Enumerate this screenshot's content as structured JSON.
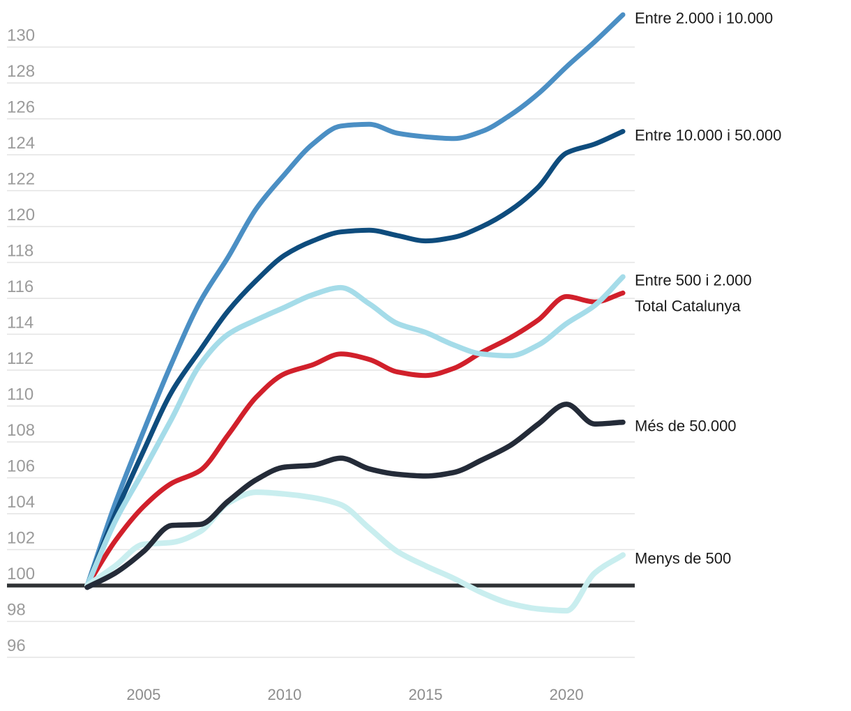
{
  "page": {
    "background": "#ffffff"
  },
  "chart_data": {
    "type": "line",
    "title": "",
    "xlabel": "",
    "ylabel": "",
    "grid": "horizontal",
    "legend_position": "line-end-right",
    "x": [
      2003,
      2004,
      2005,
      2006,
      2007,
      2008,
      2009,
      2010,
      2011,
      2012,
      2013,
      2014,
      2015,
      2016,
      2017,
      2018,
      2019,
      2020,
      2021,
      2022
    ],
    "x_axis": {
      "ticks": [
        2005,
        2010,
        2015,
        2020
      ]
    },
    "y_axis": {
      "ticks": [
        130,
        128,
        126,
        124,
        122,
        120,
        118,
        116,
        114,
        112,
        110,
        108,
        106,
        104,
        102,
        100,
        98,
        96
      ],
      "baseline": 100
    },
    "ylim": [
      96,
      132
    ],
    "colors": {
      "grid": "#e4e4e4",
      "baseline": "#2e3134",
      "y_tick_text": "#9b9b9b",
      "x_tick_text": "#8d8d8d",
      "label_text": "#1a1a1a"
    },
    "series": [
      {
        "name": "Entre 2.000 i 10.000",
        "slug": "entre-2000-i-10000",
        "color": "#4b8fc4",
        "line_width": 7,
        "values": [
          100,
          104.6,
          108.6,
          112.4,
          115.8,
          118.3,
          121.0,
          122.9,
          124.6,
          125.6,
          125.7,
          125.2,
          125.0,
          124.9,
          125.3,
          126.2,
          127.4,
          128.9,
          130.3,
          131.8
        ]
      },
      {
        "name": "Entre 10.000 i 50.000",
        "slug": "entre-10000-i-50000",
        "color": "#0e4c7d",
        "line_width": 7,
        "values": [
          100,
          104.0,
          107.5,
          110.8,
          113.1,
          115.3,
          117.0,
          118.4,
          119.2,
          119.7,
          119.8,
          119.5,
          119.2,
          119.4,
          120.0,
          120.9,
          122.2,
          124.1,
          124.6,
          125.3
        ]
      },
      {
        "name": "Total Catalunya",
        "slug": "total-catalunya",
        "color": "#d1202b",
        "line_width": 7,
        "values": [
          100,
          102.5,
          104.4,
          105.7,
          106.4,
          108.4,
          110.5,
          111.8,
          112.3,
          112.9,
          112.6,
          111.9,
          111.7,
          112.1,
          113.0,
          113.8,
          114.8,
          116.1,
          115.8,
          116.3
        ]
      },
      {
        "name": "Entre 500 i 2.000",
        "slug": "entre-500-i-2000",
        "color": "#a5dce9",
        "line_width": 7.5,
        "values": [
          100,
          103.6,
          106.4,
          109.3,
          112.3,
          114.0,
          114.8,
          115.5,
          116.2,
          116.6,
          115.7,
          114.6,
          114.1,
          113.4,
          112.9,
          112.8,
          113.4,
          114.6,
          115.6,
          117.2
        ]
      },
      {
        "name": "Menys de 500",
        "slug": "menys-de-500",
        "color": "#c9eeef",
        "line_width": 8,
        "values": [
          100,
          101.1,
          102.3,
          102.4,
          103.0,
          104.6,
          105.2,
          105.1,
          104.9,
          104.5,
          103.2,
          101.9,
          101.1,
          100.4,
          99.6,
          99.0,
          98.7,
          98.6,
          100.7,
          101.7
        ]
      },
      {
        "name": "Més de 50.000",
        "slug": "mes-de-50000",
        "color": "#242b38",
        "line_width": 7.5,
        "values": [
          99.9,
          100.7,
          101.9,
          103.35,
          103.4,
          104.7,
          105.9,
          106.6,
          106.7,
          107.1,
          106.5,
          106.2,
          106.1,
          106.3,
          107.0,
          107.8,
          109.0,
          110.1,
          109.0,
          109.1
        ]
      }
    ]
  }
}
